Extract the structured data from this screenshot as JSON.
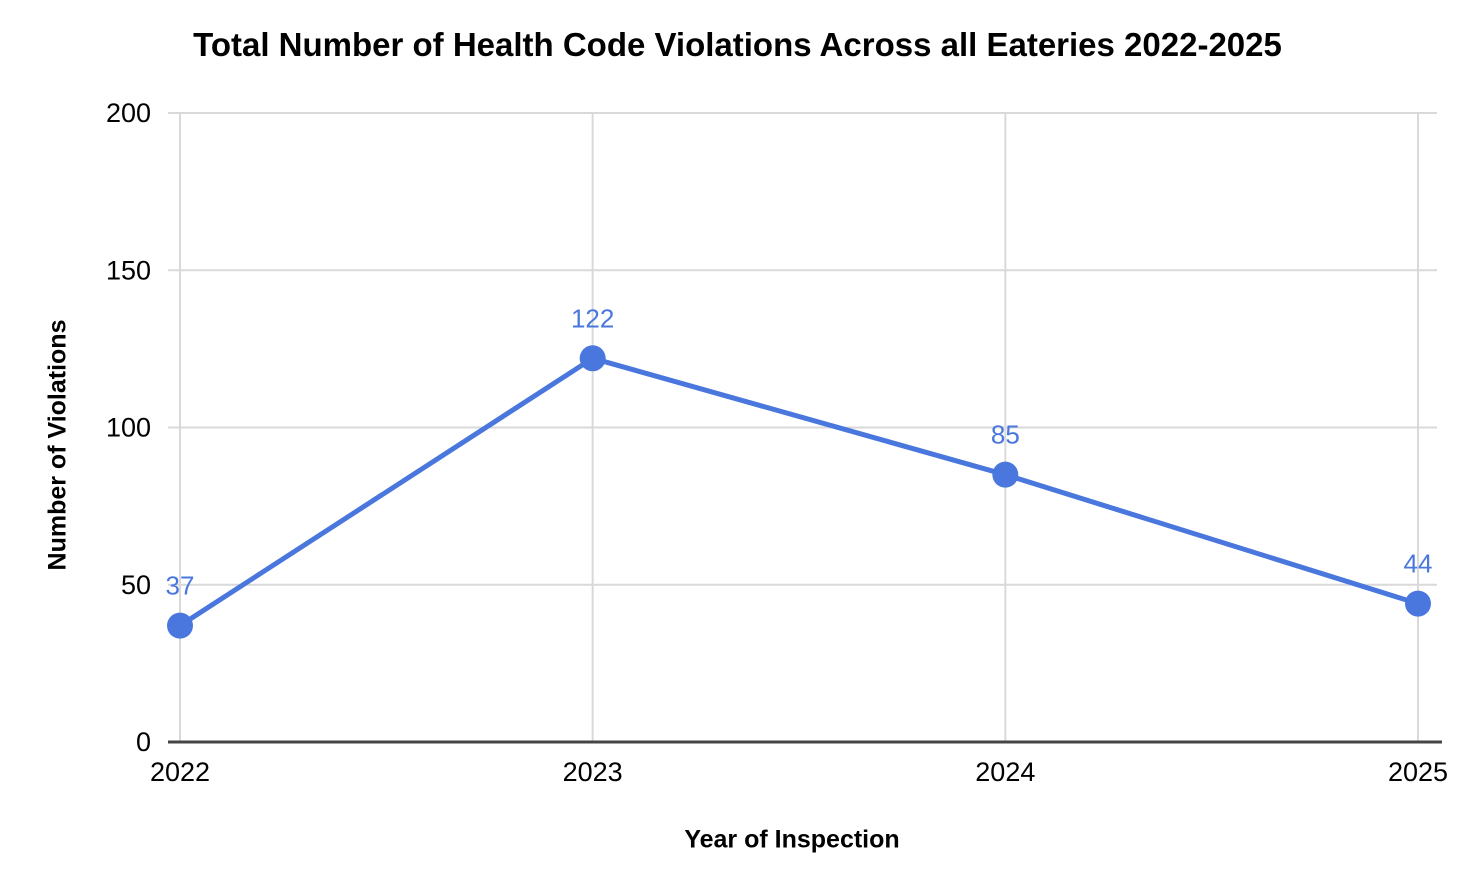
{
  "chart_data": {
    "type": "line",
    "title": "Total Number of Health Code Violations Across all Eateries 2022-2025",
    "xlabel": "Year of Inspection",
    "ylabel": "Number of Violations",
    "categories": [
      "2022",
      "2023",
      "2024",
      "2025"
    ],
    "series": [
      {
        "name": "Number of Violations",
        "values": [
          37,
          122,
          85,
          44
        ]
      }
    ],
    "data_labels": [
      "37",
      "122",
      "85",
      "44"
    ],
    "yticks": [
      0,
      50,
      100,
      150,
      200
    ],
    "ylim": [
      0,
      200
    ],
    "grid": true,
    "legend_position": "none",
    "colors": {
      "line": "#4a77dd",
      "marker": "#4a77dd",
      "data_label": "#4a77dd",
      "grid": "#d9d9d9",
      "axis": "#444444",
      "text": "#000000",
      "background": "#ffffff"
    }
  }
}
